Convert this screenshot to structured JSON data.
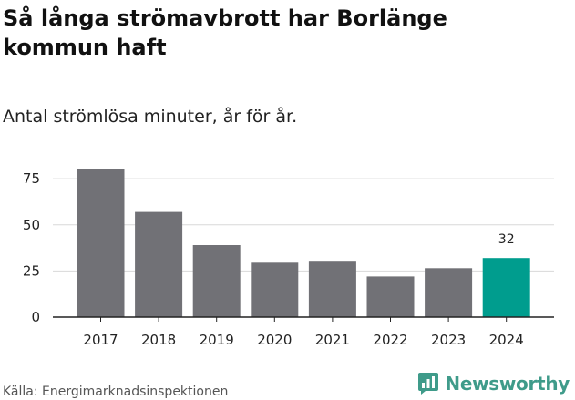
{
  "header": {
    "title": "Så långa strömavbrott har Borlänge kommun haft",
    "subtitle": "Antal strömlösa minuter, år för år."
  },
  "footer": {
    "source": "Källa: Energimarknadsinspektionen",
    "brand": "Newsworthy"
  },
  "chart_data": {
    "type": "bar",
    "categories": [
      "2017",
      "2018",
      "2019",
      "2020",
      "2021",
      "2022",
      "2023",
      "2024"
    ],
    "values": [
      80,
      57,
      39,
      29.5,
      30.5,
      22,
      26.5,
      32
    ],
    "data_labels": [
      null,
      null,
      null,
      null,
      null,
      null,
      null,
      "32"
    ],
    "highlight_index": 7,
    "ylim": [
      0,
      80
    ],
    "yticks": [
      0,
      25,
      50,
      75
    ],
    "grid": true,
    "legend": "none",
    "colors": {
      "bar": "#717176",
      "highlight": "#009d8e",
      "grid": "#d8d8d8",
      "axis": "#222222"
    }
  },
  "icons": {
    "brand": "newsworthy-logo-icon"
  }
}
